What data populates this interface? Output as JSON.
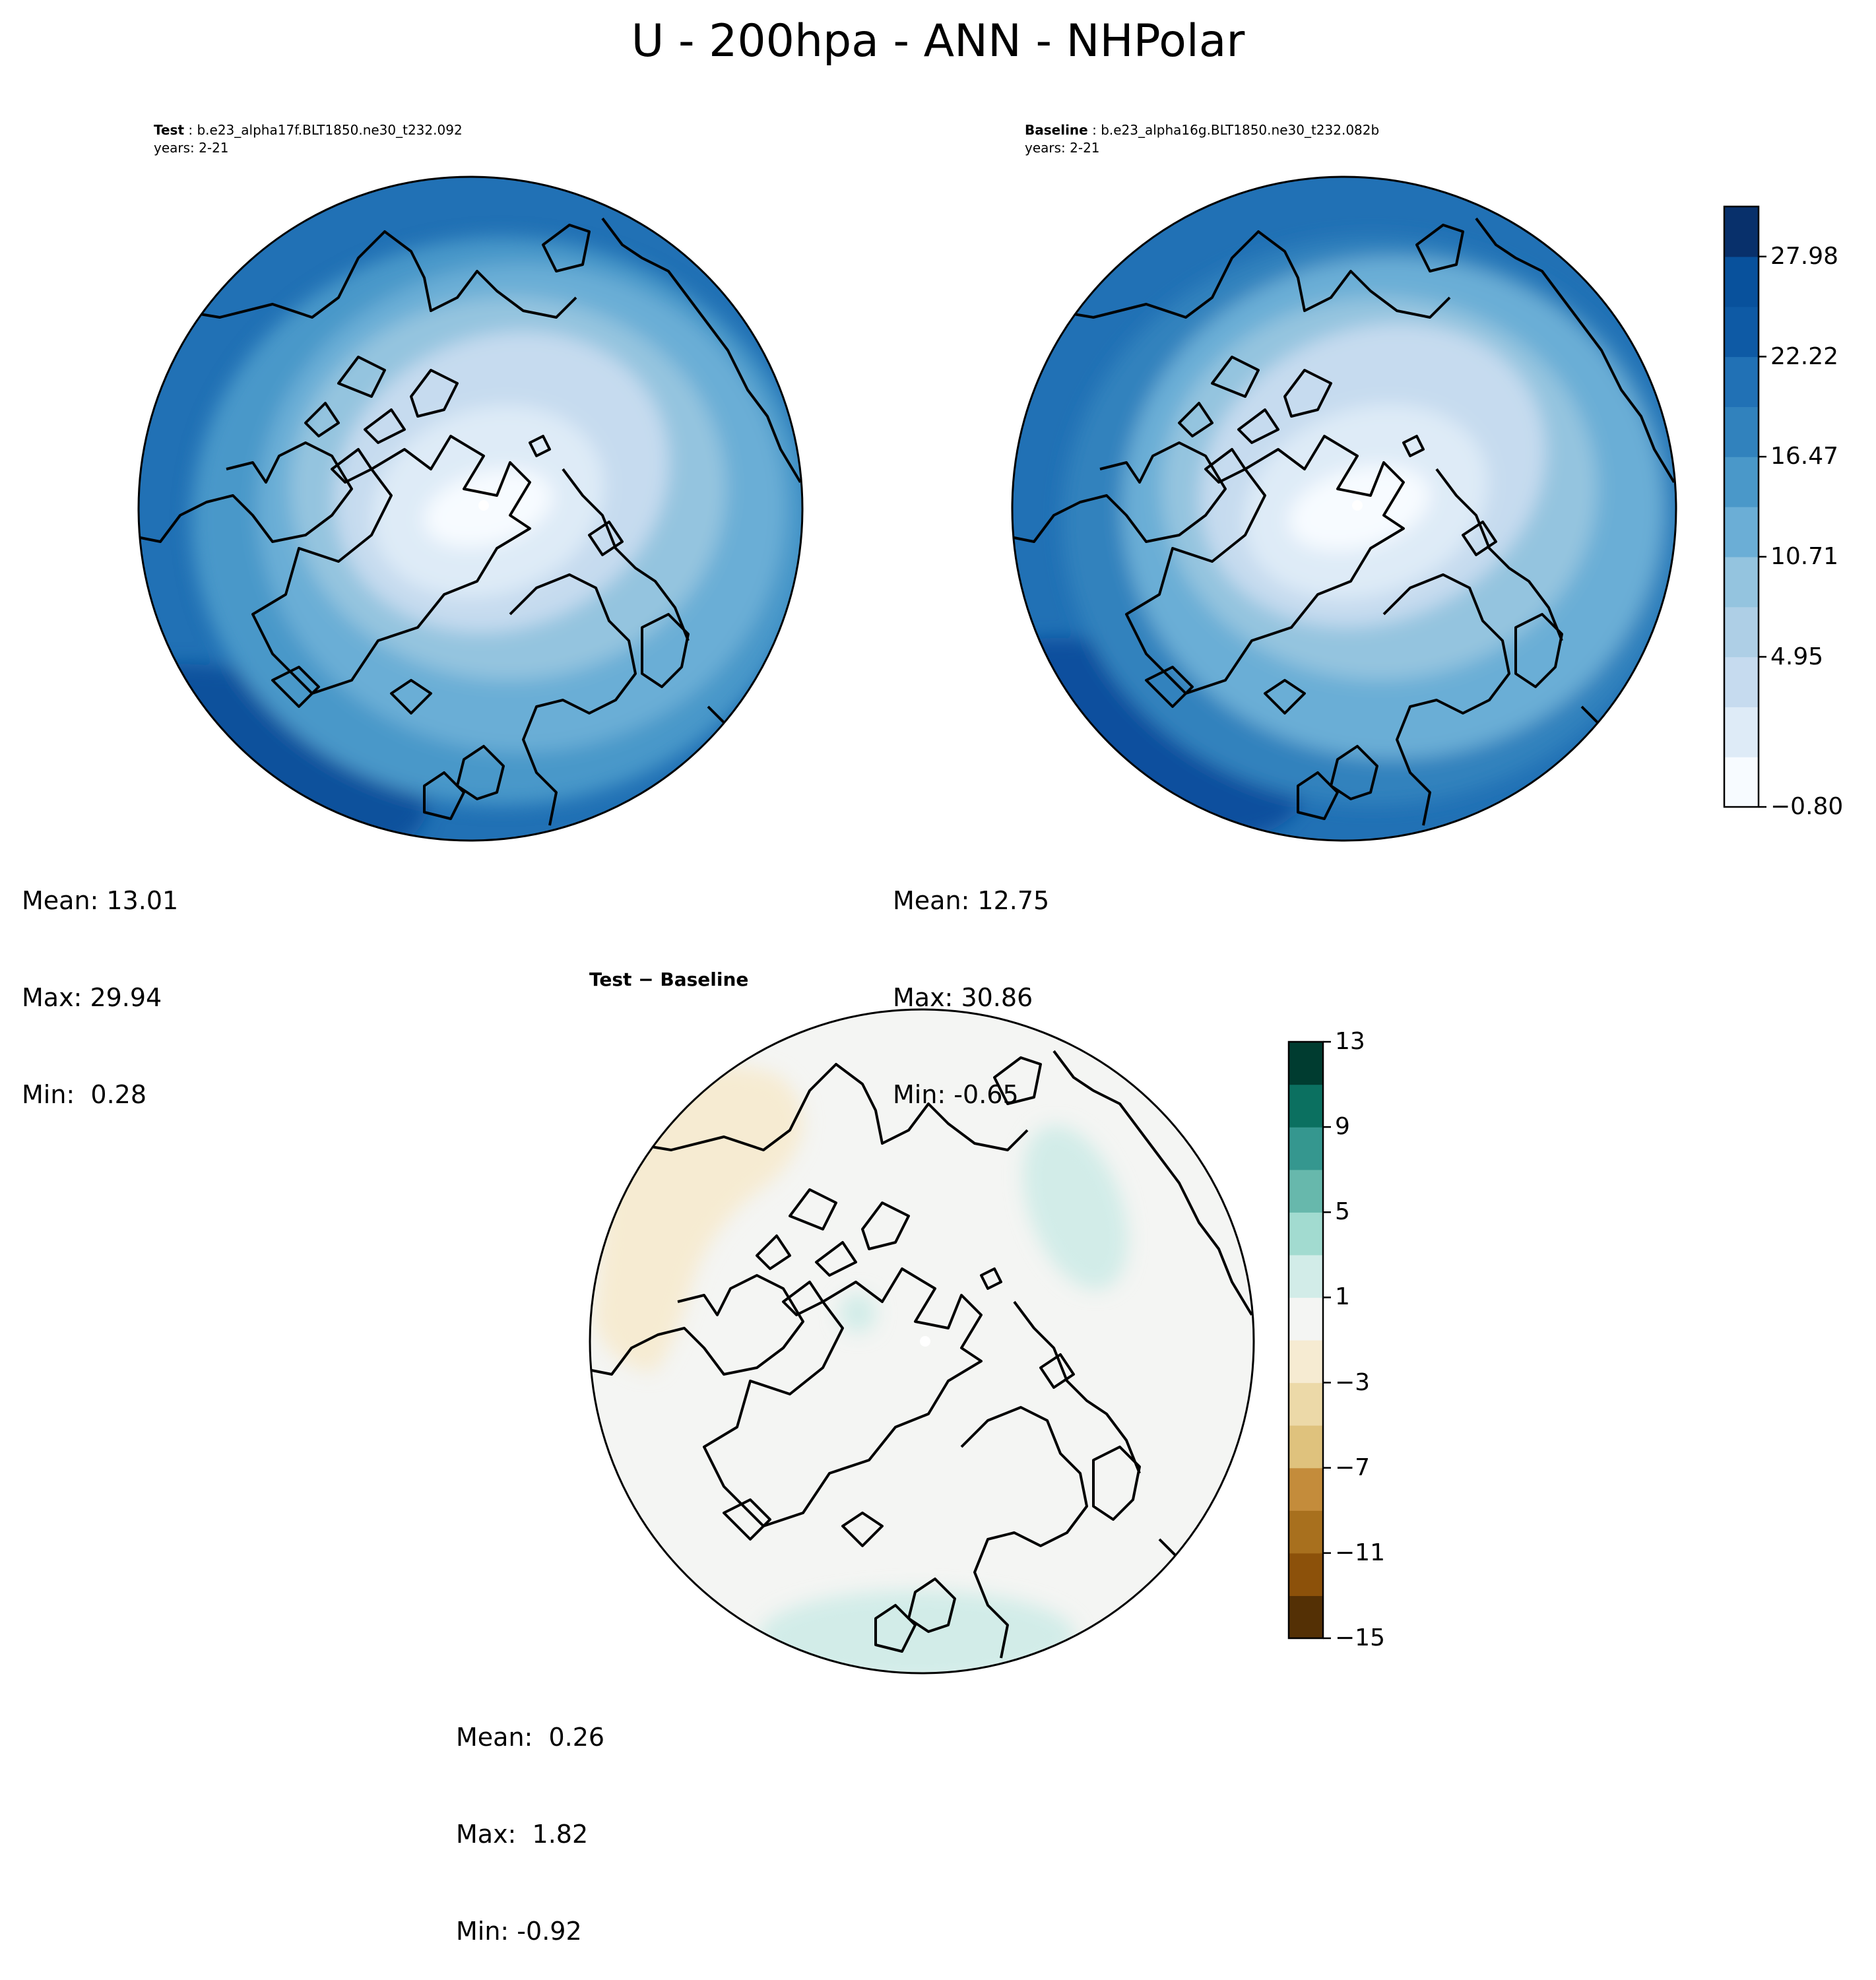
{
  "figure": {
    "title": "U - 200hpa - ANN - NHPolar"
  },
  "panels": {
    "test": {
      "label": "Test",
      "case": "b.e23_alpha17f.BLT1850.ne30_t232.092",
      "years": "years: 2-21",
      "stats": {
        "mean": "Mean: 13.01",
        "max": "Max: 29.94",
        "min": "Min:  0.28"
      }
    },
    "baseline": {
      "label": "Baseline",
      "case": "b.e23_alpha16g.BLT1850.ne30_t232.082b",
      "years": "years: 2-21",
      "stats": {
        "mean": "Mean: 12.75",
        "max": "Max: 30.86",
        "min": "Min: -0.65"
      }
    },
    "diff": {
      "title": "Test − Baseline",
      "stats": {
        "mean": "Mean:  0.26",
        "max": "Max:  1.82",
        "min": "Min: -0.92"
      }
    }
  },
  "colorbars": {
    "main": {
      "ticks": [
        "27.98",
        "22.22",
        "16.47",
        "10.71",
        "4.95",
        "−0.80"
      ],
      "colors": [
        "#f7fbff",
        "#deebf7",
        "#c6dbef",
        "#aecfe6",
        "#94c4df",
        "#6baed6",
        "#4a98c9",
        "#3182bd",
        "#2171b5",
        "#0e5aa5",
        "#08519c",
        "#08306b"
      ]
    },
    "diff": {
      "ticks": [
        "13",
        "9",
        "5",
        "1",
        "−3",
        "−7",
        "−11",
        "−15"
      ],
      "colors": [
        "#543005",
        "#8c510a",
        "#a8701e",
        "#c48c3b",
        "#dfc27d",
        "#ecd9a8",
        "#f6ebd2",
        "#f4f5f3",
        "#d2ece8",
        "#a2dbd0",
        "#67b8ac",
        "#35978f",
        "#0b7060",
        "#003c30"
      ]
    }
  },
  "map_colors": {
    "test": {
      "outer": "#2171b5",
      "ring2": "#4a98c9",
      "ring3": "#6baed6",
      "ring4": "#94c4df",
      "ring5": "#c6dbef",
      "ring6": "#deebf7",
      "core": "#f7fbff",
      "jet": "#08519c"
    },
    "baseline": {
      "outer": "#2171b5",
      "ring2": "#3182bd",
      "ring3": "#6baed6",
      "ring4": "#94c4df",
      "ring5": "#c6dbef",
      "ring6": "#deebf7",
      "core": "#f7fbff",
      "jet": "#0a4f9e"
    },
    "diff": {
      "background": "#f4f5f3",
      "positive": "#d2ece8",
      "negative": "#f6ebd2"
    }
  }
}
